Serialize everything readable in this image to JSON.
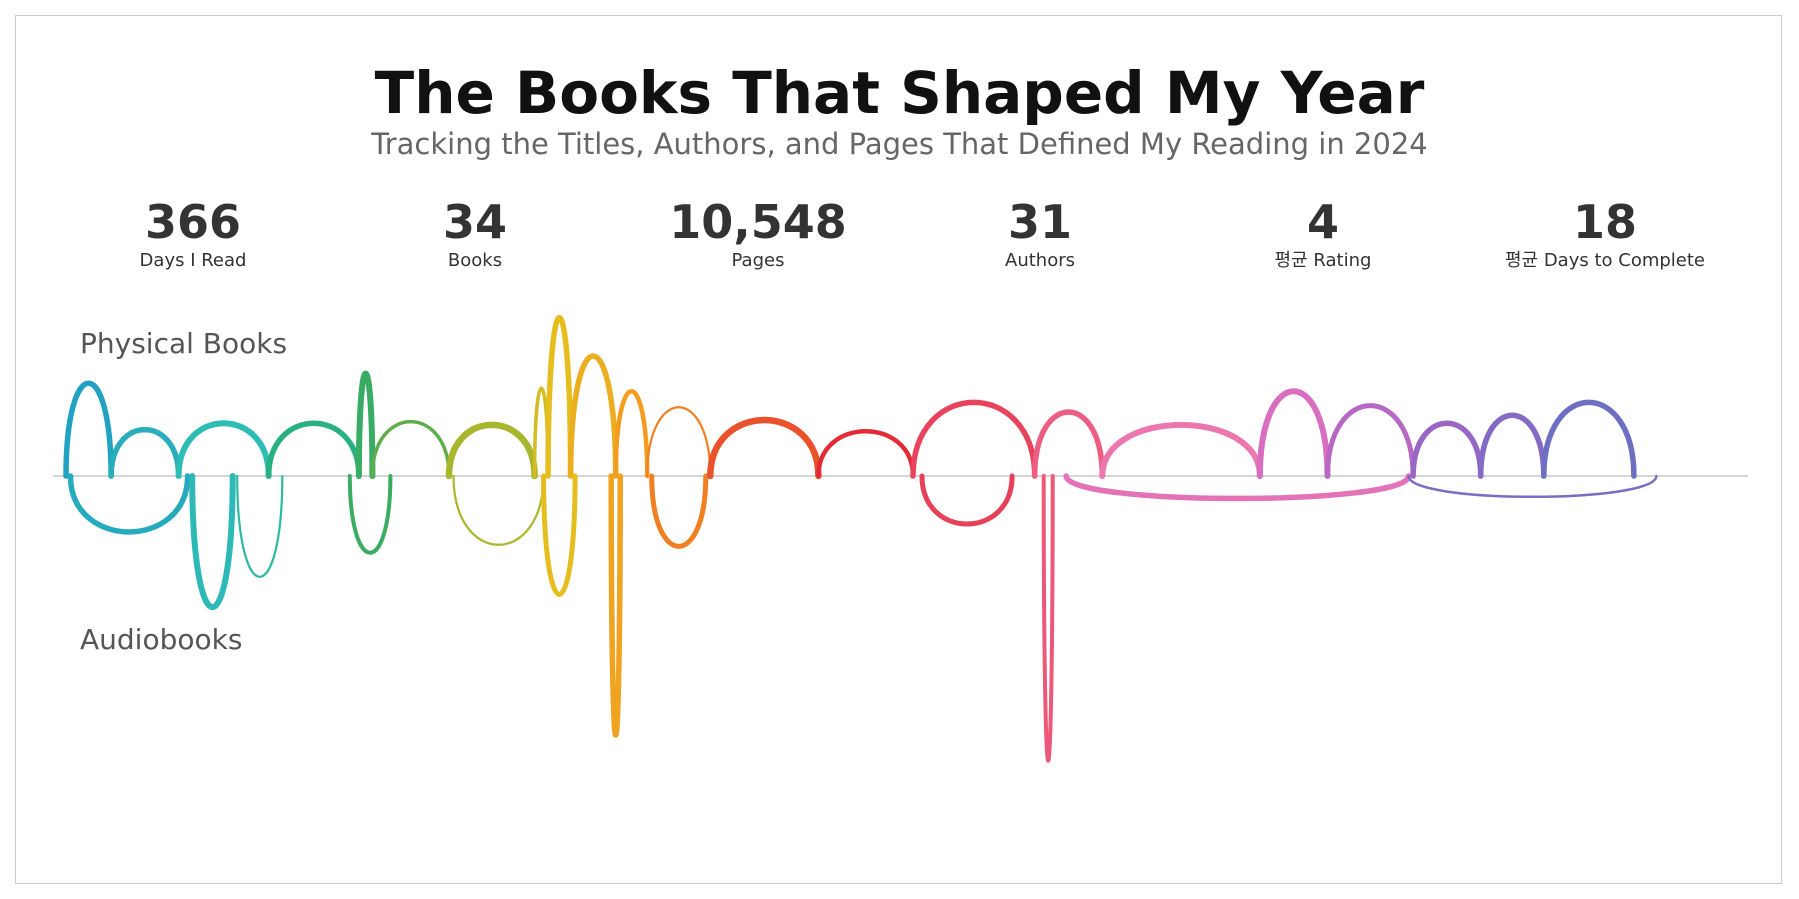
{
  "title": "The Books That Shaped My Year",
  "subtitle": "Tracking the Titles, Authors, and Pages That Defined My Reading in 2024",
  "stats": [
    {
      "value": "366",
      "label": "Days I Read"
    },
    {
      "value": "34",
      "label": "Books"
    },
    {
      "value": "10,548",
      "label": "Pages"
    },
    {
      "value": "31",
      "label": "Authors"
    },
    {
      "value": "4",
      "label": "평균 Rating"
    },
    {
      "value": "18",
      "label": "평균 Days to Complete"
    }
  ],
  "chart_data": {
    "type": "arc",
    "x_range": [
      0,
      366
    ],
    "series": [
      {
        "name": "Physical Books",
        "direction": "up"
      },
      {
        "name": "Audiobooks",
        "direction": "down"
      }
    ],
    "physical": [
      {
        "start": 0,
        "end": 10,
        "size": 0.58,
        "w": 5.5
      },
      {
        "start": 10,
        "end": 25,
        "size": 0.29,
        "w": 5.5
      },
      {
        "start": 25,
        "end": 45,
        "size": 0.33,
        "w": 6
      },
      {
        "start": 45,
        "end": 65,
        "size": 0.33,
        "w": 5.5
      },
      {
        "start": 65,
        "end": 68,
        "size": 0.64,
        "w": 6
      },
      {
        "start": 68,
        "end": 85,
        "size": 0.34,
        "w": 3.5
      },
      {
        "start": 85,
        "end": 104,
        "size": 0.32,
        "w": 6.5
      },
      {
        "start": 104,
        "end": 107,
        "size": 0.55,
        "w": 3.5
      },
      {
        "start": 107,
        "end": 112,
        "size": 0.99,
        "w": 5.5
      },
      {
        "start": 112,
        "end": 122,
        "size": 0.75,
        "w": 5.5
      },
      {
        "start": 122,
        "end": 129,
        "size": 0.53,
        "w": 4.5
      },
      {
        "start": 129,
        "end": 143,
        "size": 0.43,
        "w": 2.2
      },
      {
        "start": 143,
        "end": 167,
        "size": 0.35,
        "w": 6.5
      },
      {
        "start": 167,
        "end": 188,
        "size": 0.28,
        "w": 4.5
      },
      {
        "start": 188,
        "end": 215,
        "size": 0.46,
        "w": 5.5
      },
      {
        "start": 215,
        "end": 230,
        "size": 0.4,
        "w": 5.5
      },
      {
        "start": 230,
        "end": 265,
        "size": 0.32,
        "w": 6
      },
      {
        "start": 265,
        "end": 280,
        "size": 0.53,
        "w": 6
      },
      {
        "start": 280,
        "end": 299,
        "size": 0.44,
        "w": 5
      },
      {
        "start": 299,
        "end": 314,
        "size": 0.33,
        "w": 5.5
      },
      {
        "start": 314,
        "end": 328,
        "size": 0.38,
        "w": 5.5
      },
      {
        "start": 328,
        "end": 348,
        "size": 0.46,
        "w": 5.5
      }
    ],
    "audio": [
      {
        "start": 1,
        "end": 27,
        "size": 0.35,
        "w": 5.5
      },
      {
        "start": 28,
        "end": 37,
        "size": 0.82,
        "w": 6
      },
      {
        "start": 38,
        "end": 48,
        "size": 0.63,
        "w": 2.2
      },
      {
        "start": 63,
        "end": 72,
        "size": 0.48,
        "w": 4
      },
      {
        "start": 86,
        "end": 106,
        "size": 0.43,
        "w": 2.2
      },
      {
        "start": 106,
        "end": 113,
        "size": 0.74,
        "w": 5
      },
      {
        "start": 121,
        "end": 123,
        "size": 1.62,
        "w": 5.5
      },
      {
        "start": 130,
        "end": 142,
        "size": 0.44,
        "w": 5
      },
      {
        "start": 190,
        "end": 210,
        "size": 0.3,
        "w": 5
      },
      {
        "start": 217,
        "end": 219,
        "size": 1.78,
        "w": 4
      },
      {
        "start": 222,
        "end": 298,
        "size": 0.14,
        "w": 5.5
      },
      {
        "start": 298,
        "end": 353,
        "size": 0.13,
        "w": 2.5
      }
    ]
  }
}
